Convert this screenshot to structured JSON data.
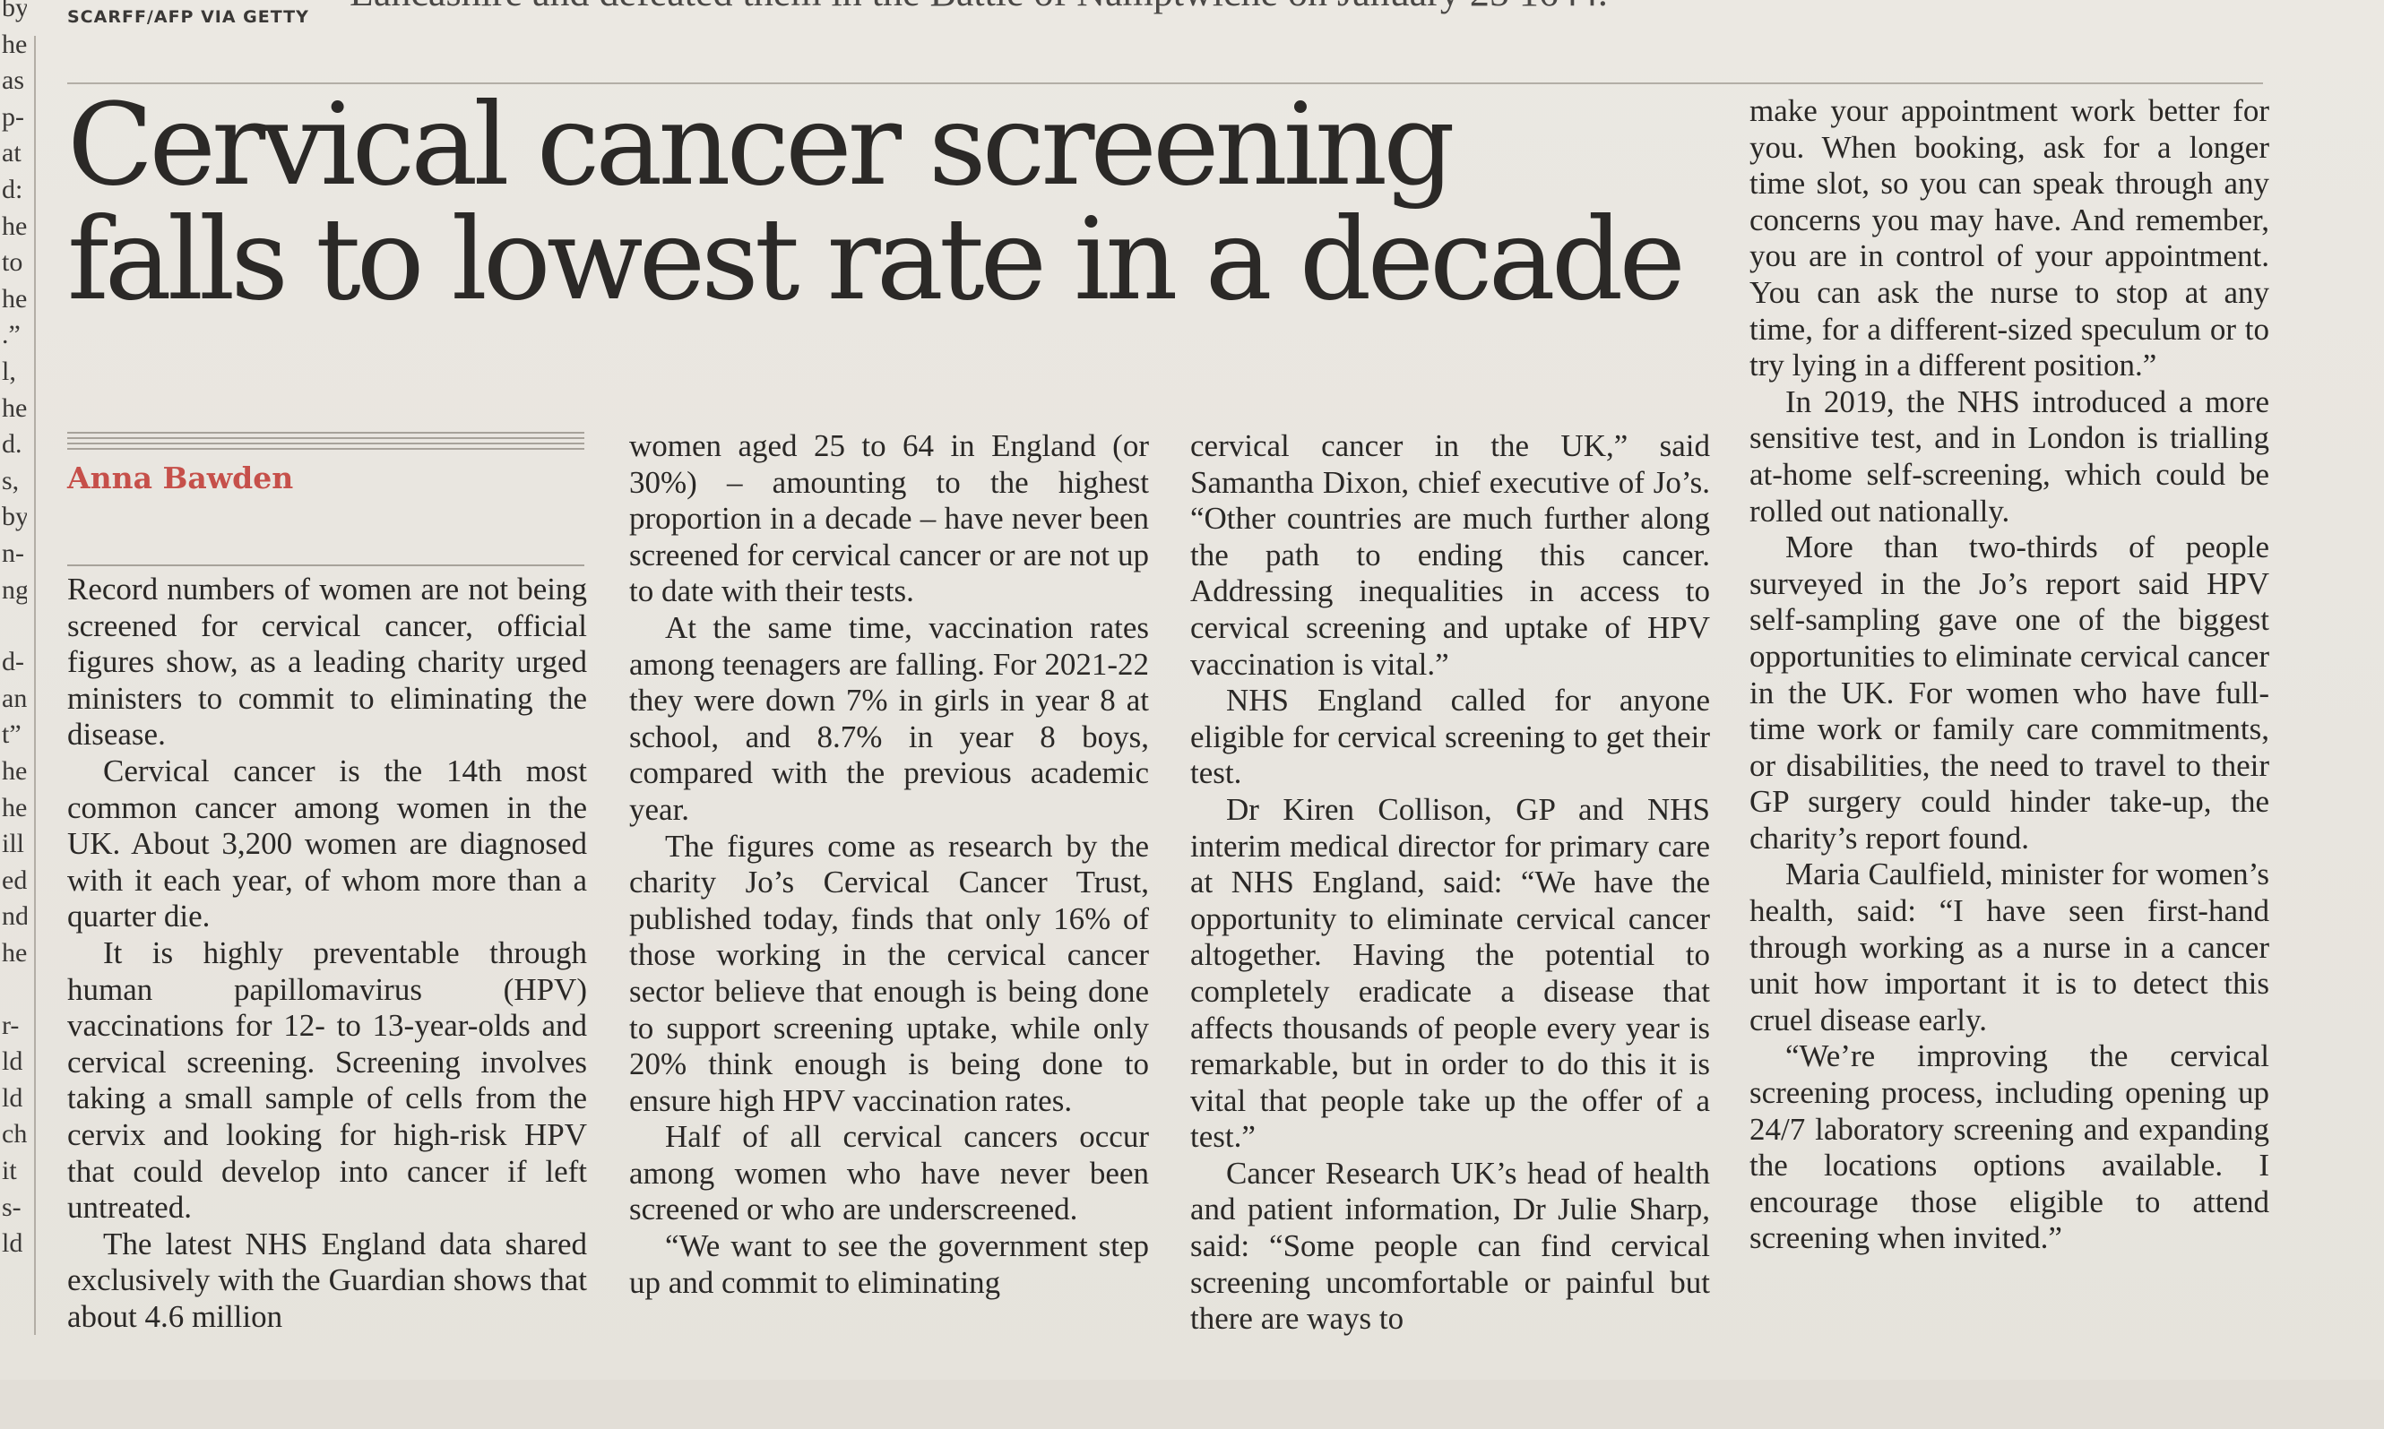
{
  "top": {
    "photo_credit": "SCARFF/AFP VIA GETTY",
    "caption_fragment": "Lancashire and defeated them in the Battle of  Namptwiche  on January 25 1644."
  },
  "left_margin_fragments": [
    "by",
    "he",
    "as",
    "p-",
    "at",
    "d:",
    "he",
    "to",
    "he",
    ".”",
    "l,",
    "he",
    "d.",
    "s,",
    "by",
    "n-",
    "ng",
    "d-",
    "an",
    "t”",
    "he",
    "he",
    "ill",
    "ed",
    "nd",
    "he",
    "r-",
    "ld",
    "ld",
    "ch",
    "it",
    "s-",
    "ld"
  ],
  "article": {
    "headline_line1": "Cervical cancer screening",
    "headline_line2": "falls to lowest rate in a decade",
    "byline": "Anna Bawden",
    "columns": [
      [
        "Record numbers of women are not being screened for cervical cancer, official figures show, as a leading charity urged ministers to commit to eliminating the disease.",
        "Cervical cancer is the 14th most common cancer among women in the UK. About 3,200 women are diagnosed with it each year, of whom more than a quarter die.",
        "It is highly preventable through human papillomavirus (HPV) vaccinations for 12- to 13-year-olds and cervical screening. Screening involves taking a small sample of cells from the cervix and looking for high-risk HPV that could develop into cancer if left untreated.",
        "The latest NHS England data shared exclusively with the Guardian shows that about 4.6 million"
      ],
      [
        "women aged 25 to 64 in England (or 30%) – amounting to the highest proportion in a decade – have never been screened for cervical cancer or are not up to date with their tests.",
        "At the same time, vaccination rates among teenagers are falling. For 2021-22 they were down 7% in girls in year 8 at school, and 8.7% in year 8 boys, compared with the previous academic year.",
        "The figures come as research by the charity Jo’s Cervical Cancer Trust, published today, finds that only 16% of those working in the cervical cancer sector believe that enough is being done to support screening uptake, while only 20% think enough is being done to ensure high HPV vaccination rates.",
        "Half of all cervical cancers occur among women who have never been screened or who are underscreened.",
        "“We want to see the government step up and commit to eliminating"
      ],
      [
        "cervical cancer in the UK,” said Samantha Dixon, chief executive of Jo’s. “Other countries are much further along the path to ending this cancer. Addressing inequalities in access to cervical screening and uptake of HPV vaccination is vital.”",
        "NHS England called for anyone eligible for cervical screening to get their test.",
        "Dr Kiren Collison, GP and NHS interim medical director for primary care at NHS England, said: “We have the opportunity to eliminate cervical cancer altogether. Having the potential to completely eradicate a disease that affects thousands of people every year is remarkable, but in order to do this it is vital that people take up the offer of a test.”",
        "Cancer Research UK’s head of health and patient information, Dr Julie Sharp, said: “Some people can find cervical screening uncomfortable or painful but there are ways to"
      ],
      [
        "make your appointment work better for you. When booking, ask for a longer time slot, so you can speak through any concerns you may have. And remember, you are in control of your appointment. You can ask the nurse to stop at any time, for a different-sized speculum or to try lying in a different position.”",
        "In 2019, the NHS introduced a more sensitive test, and in London is trialling at-home self-screening, which could be rolled out nationally.",
        "More than two-thirds of people surveyed in the Jo’s report said HPV self-sampling gave one of the biggest opportunities to eliminate cervical cancer in the UK. For women who have full-time work or family care commitments, or disabilities, the need to travel to their GP surgery could hinder take-up, the charity’s report found.",
        "Maria Caulfield, minister for women’s health, said: “I have seen first-hand through working as a nurse in a cancer unit how important it is to detect this cruel disease early.",
        "“We’re improving the cervical screening process, including opening up 24/7 laboratory screening and expanding the locations options available. I encourage those eligible to attend screening when invited.”"
      ]
    ]
  },
  "colors": {
    "paper": "#e9e6e0",
    "ink": "#2a2826",
    "byline": "#c6504a",
    "rule": "#b3aea6"
  }
}
